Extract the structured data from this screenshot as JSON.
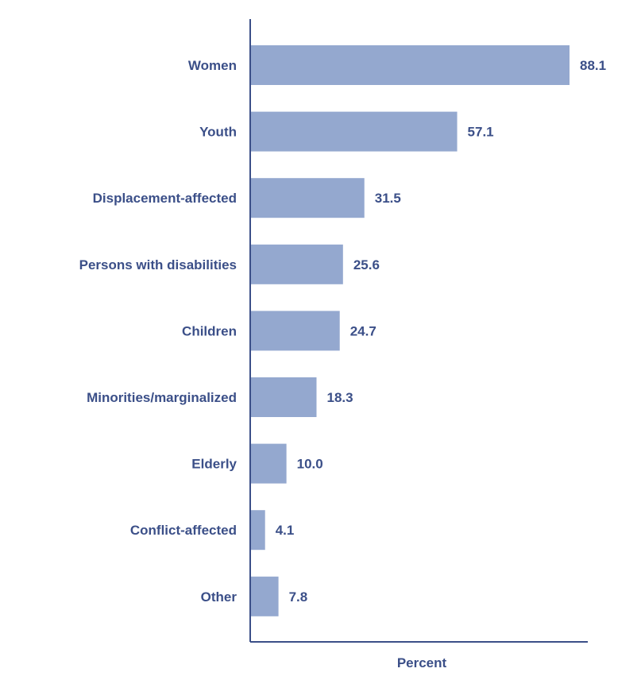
{
  "chart_data": {
    "type": "bar",
    "orientation": "horizontal",
    "categories": [
      "Women",
      "Youth",
      "Displacement-affected",
      "Persons with disabilities",
      "Children",
      "Minorities/marginalized",
      "Elderly",
      "Conflict-affected",
      "Other"
    ],
    "values": [
      88.1,
      57.1,
      31.5,
      25.6,
      24.7,
      18.3,
      10.0,
      4.1,
      7.8
    ],
    "value_labels": [
      "88.1",
      "57.1",
      "31.5",
      "25.6",
      "24.7",
      "18.3",
      "10.0",
      "4.1",
      "7.8"
    ],
    "title": "",
    "xlabel": "Percent",
    "ylabel": "",
    "xlim": [
      0,
      88.1
    ],
    "grid": false,
    "legend": "none",
    "colors": {
      "bar": "#94a8cf",
      "axis": "#3b4f88",
      "text": "#3b4f88"
    }
  }
}
